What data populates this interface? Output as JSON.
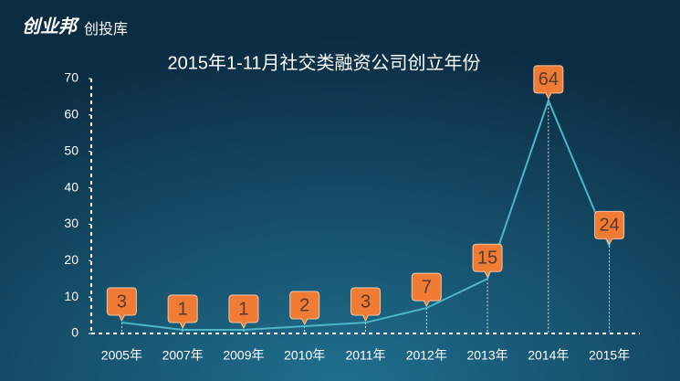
{
  "header": {
    "logo": "创业邦",
    "sub": "创投库"
  },
  "chart_data": {
    "type": "line",
    "title": "2015年1-11月社交类融资公司创立年份",
    "categories": [
      "2005年",
      "2007年",
      "2009年",
      "2010年",
      "2011年",
      "2012年",
      "2013年",
      "2014年",
      "2015年"
    ],
    "values": [
      3,
      1,
      1,
      2,
      3,
      7,
      15,
      64,
      24
    ],
    "color": "#4db6c9",
    "label_color": "#ef7b35",
    "ylim": [
      0,
      70
    ],
    "yticks": [
      0,
      10,
      20,
      30,
      40,
      50,
      60,
      70
    ],
    "grid": false
  }
}
